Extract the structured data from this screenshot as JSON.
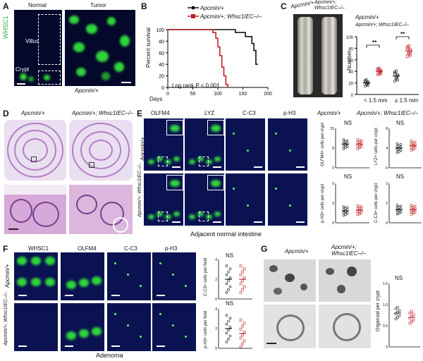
{
  "panels": {
    "A": {
      "letter": "A",
      "normal": "Normal",
      "tumor": "Tumor",
      "villus": "Villus",
      "crypt": "Crypt",
      "marker": "WHSC1",
      "genotype": "Apcmin/+"
    },
    "B": {
      "letter": "B",
      "legend1": "Apcmin/+",
      "legend2": "Apcmin/+; Whsc1IEC–/–",
      "ylabel": "Percent survival",
      "xlabel": "Days",
      "stat": "Log rank P < 0.001",
      "yticks": [
        "0",
        "20",
        "40",
        "60",
        "80",
        "100"
      ],
      "xticks": [
        "0",
        "50",
        "100",
        "150",
        "200"
      ]
    },
    "C": {
      "letter": "C",
      "img1": "Apcmin/+",
      "img2": "Apcmin/+; Whsc1IEC–/–",
      "legend1": "Apcmin/+",
      "legend2": "Apcmin/+; Whsc1IEC–/–",
      "ylabel": "Number",
      "xcat1": "< 1.5 mm",
      "xcat2": "≥ 1.5 mm",
      "sig": "**",
      "yticks": [
        "0",
        "20",
        "40",
        "60",
        "80",
        "100"
      ]
    },
    "D": {
      "letter": "D",
      "col1": "Apcmin/+",
      "col2": "Apcmin/+; Whsc1IEC–/–"
    },
    "E": {
      "letter": "E",
      "m1": "OLFM4",
      "m2": "LYZ",
      "m3": "C-C3",
      "m4": "p-H3",
      "row1": "Apcmin/+",
      "row2": "Apcmin/+; Whsc1IEC–/–",
      "caption": "Adjacent normal intestine",
      "legend1": "Apcmin/+",
      "legend2": "Apcmin/+; Whsc1IEC–/–",
      "ns": "NS",
      "y1": "OLFM4+ cells per crypt",
      "y2": "LYZ+ cells per crypt",
      "y3": "p-H3+ cells per crypt",
      "y4": "C-C3+ cells per crypt"
    },
    "F": {
      "letter": "F",
      "m1": "WHSC1",
      "m2": "OLFM4",
      "m3": "C-C3",
      "m4": "p-H3",
      "row1": "Apcmin/+",
      "row2": "Apcmin/+; Whsc1IEC–/–",
      "caption": "Adenoma",
      "ns": "NS",
      "y1": "C-C3+ cells per field",
      "y2": "p-H3+ cells per field"
    },
    "G": {
      "letter": "G",
      "col1": "Apcmin/+",
      "col2": "Apcmin/+; Whsc1IEC–/–",
      "ns": "NS",
      "ylabel": "Organoid per crypt"
    }
  },
  "colors": {
    "wt": "#111111",
    "ko": "#c0222a",
    "fluor_green": "#2fd43a",
    "fluor_bg": "#04082a"
  },
  "chart_data": [
    {
      "type": "line",
      "panel": "B",
      "xlabel": "Days",
      "ylabel": "Percent survival",
      "xlim": [
        0,
        200
      ],
      "ylim": [
        0,
        100
      ],
      "series": [
        {
          "name": "Apcmin/+",
          "points": [
            [
              0,
              100
            ],
            [
              135,
              100
            ],
            [
              135,
              95
            ],
            [
              155,
              95
            ],
            [
              155,
              88
            ],
            [
              168,
              88
            ],
            [
              168,
              76
            ],
            [
              172,
              76
            ],
            [
              172,
              64
            ],
            [
              176,
              64
            ],
            [
              176,
              40
            ],
            [
              180,
              40
            ]
          ]
        },
        {
          "name": "Apcmin/+; Whsc1IEC–/–",
          "points": [
            [
              0,
              100
            ],
            [
              90,
              100
            ],
            [
              90,
              95
            ],
            [
              96,
              95
            ],
            [
              96,
              85
            ],
            [
              100,
              85
            ],
            [
              100,
              70
            ],
            [
              104,
              70
            ],
            [
              104,
              55
            ],
            [
              108,
              55
            ],
            [
              108,
              35
            ],
            [
              112,
              35
            ],
            [
              112,
              20
            ],
            [
              116,
              20
            ],
            [
              116,
              5
            ],
            [
              120,
              5
            ],
            [
              120,
              0
            ]
          ]
        }
      ]
    },
    {
      "type": "scatter",
      "panel": "C",
      "ylabel": "Number",
      "categories": [
        "< 1.5 mm",
        "≥ 1.5 mm"
      ],
      "ylim": [
        0,
        100
      ],
      "series": [
        {
          "name": "Apcmin/+",
          "means": [
            20,
            32
          ]
        },
        {
          "name": "Apcmin/+; Whsc1IEC–/–",
          "means": [
            40,
            75
          ]
        }
      ]
    },
    {
      "type": "scatter",
      "panel": "E",
      "ylabel": "OLFM4+ cells per crypt",
      "series": [
        {
          "name": "Apcmin/+",
          "mean": 9
        },
        {
          "name": "Apcmin/+; Whsc1IEC–/–",
          "mean": 9
        }
      ]
    },
    {
      "type": "scatter",
      "panel": "G",
      "ylabel": "Organoid per crypt",
      "series": [
        {
          "name": "Apcmin/+",
          "mean": 0.8
        },
        {
          "name": "Apcmin/+; Whsc1IEC–/–",
          "mean": 0.7
        }
      ]
    }
  ]
}
